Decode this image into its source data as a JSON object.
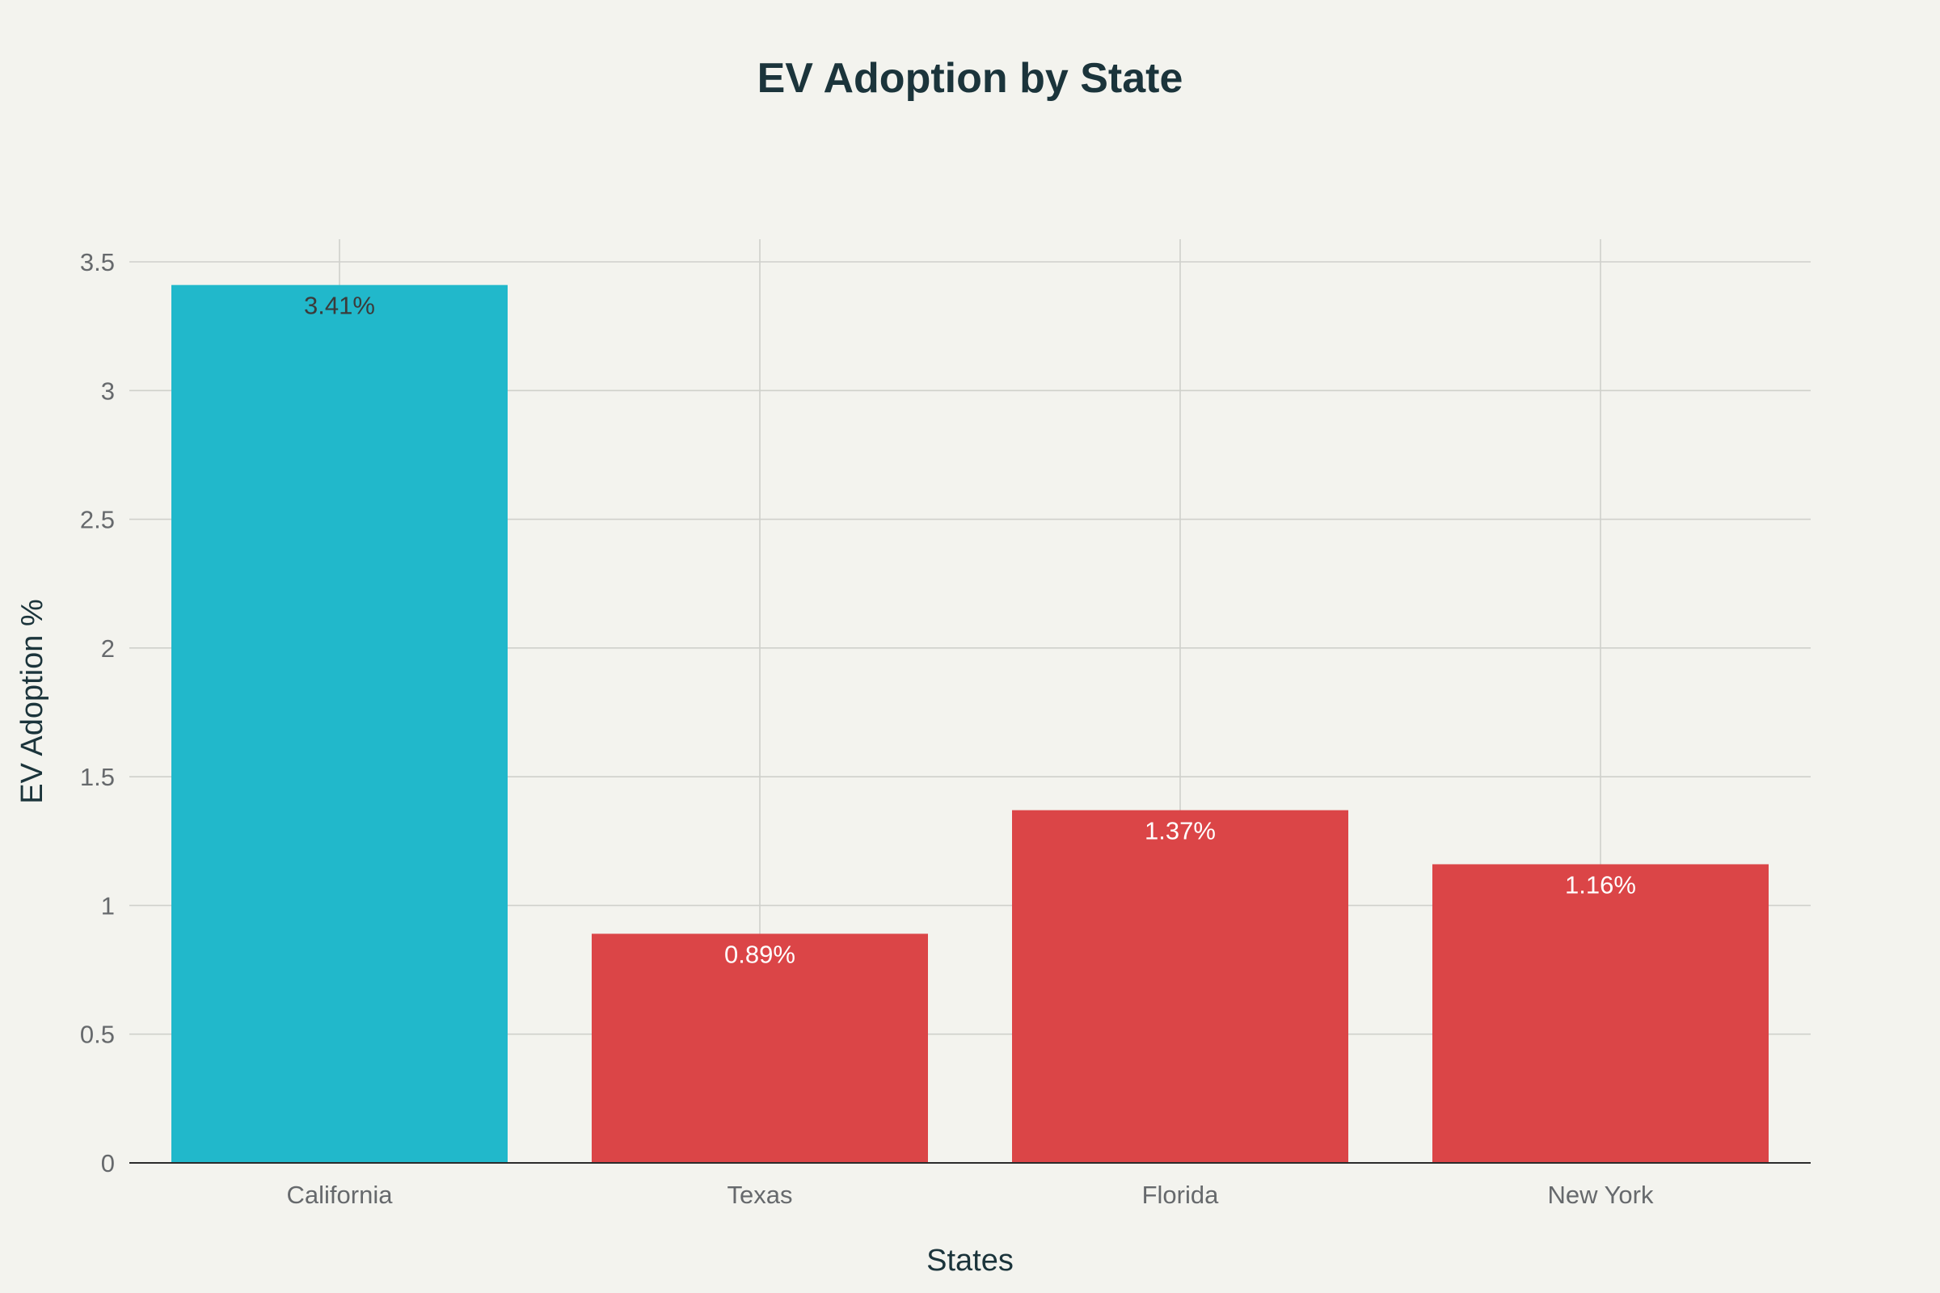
{
  "colors": {
    "background": "#f3f3ee",
    "highlight_bar": "#21b8cb",
    "default_bar": "#db4547",
    "label_on_highlight": "#3b3b3b",
    "label_on_default": "#ffffff"
  },
  "chart_data": {
    "type": "bar",
    "title": "EV Adoption by State",
    "xlabel": "States",
    "ylabel": "EV Adoption %",
    "categories": [
      "California",
      "Texas",
      "Florida",
      "New York"
    ],
    "values": [
      3.41,
      0.89,
      1.37,
      1.16
    ],
    "data_labels": [
      "3.41%",
      "0.89%",
      "1.37%",
      "1.16%"
    ],
    "bar_colors": [
      "#21b8cb",
      "#db4547",
      "#db4547",
      "#db4547"
    ],
    "ylim": [
      0,
      3.5
    ],
    "yticks": [
      0,
      0.5,
      1,
      1.5,
      2,
      2.5,
      3,
      3.5
    ],
    "ytick_labels": [
      "0",
      "0.5",
      "1",
      "1.5",
      "2",
      "2.5",
      "3",
      "3.5"
    ],
    "grid": true,
    "legend": "none"
  }
}
